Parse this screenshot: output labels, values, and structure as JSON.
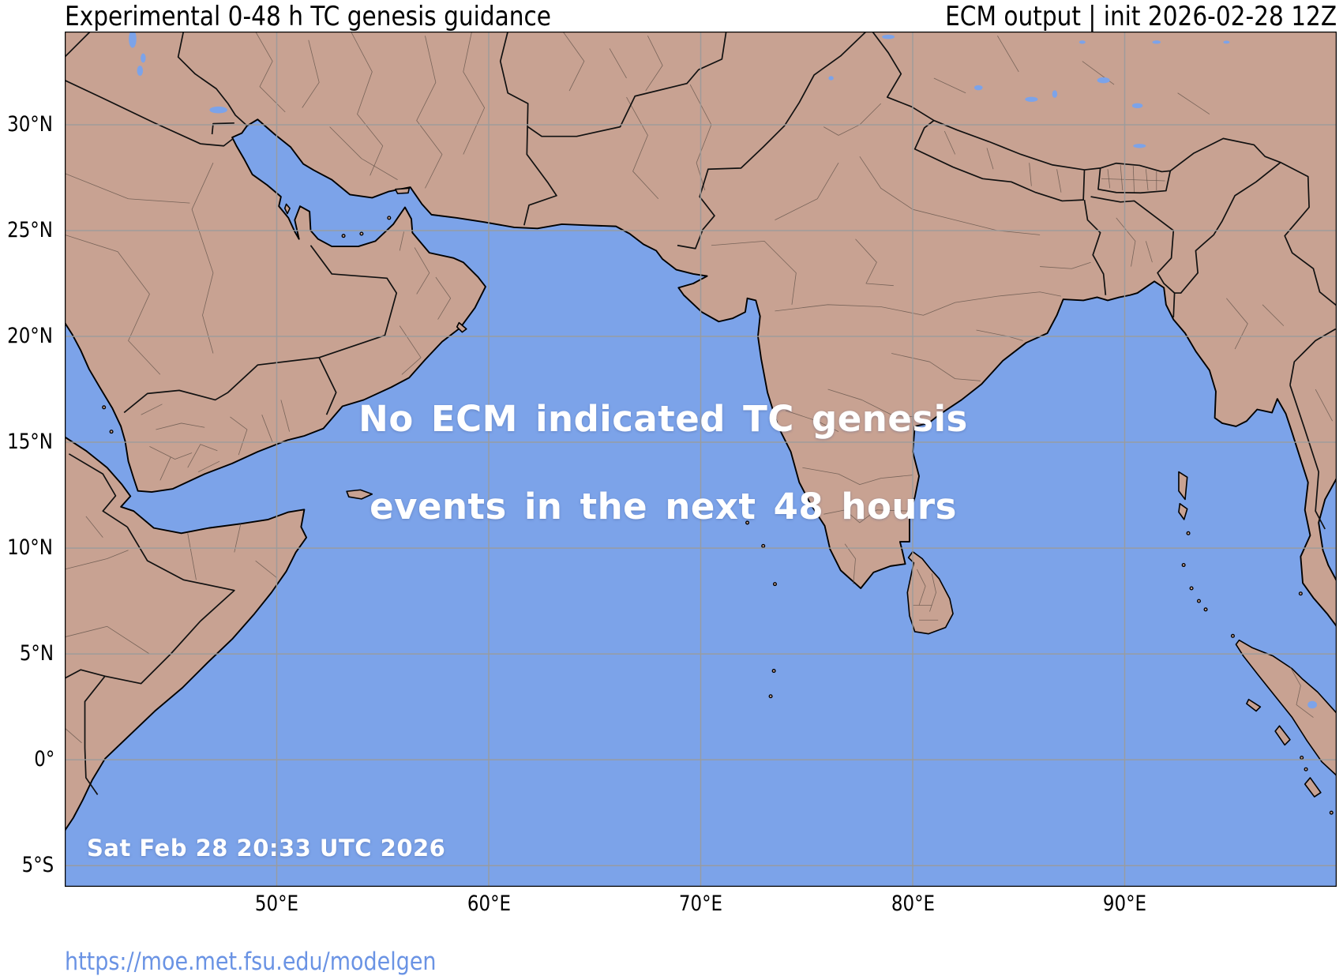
{
  "header": {
    "title_left": "Experimental 0-48 h TC genesis guidance",
    "title_right": "ECM output | init 2026-02-28 12Z"
  },
  "map": {
    "message_line1": "No ECM indicated TC genesis",
    "message_line2": "events in the next 48 hours",
    "timestamp": "Sat Feb 28 20:33 UTC 2026",
    "lat_ticks": [
      "30°N",
      "25°N",
      "20°N",
      "15°N",
      "10°N",
      "5°N",
      "0°",
      "5°S"
    ],
    "lon_ticks": [
      "50°E",
      "60°E",
      "70°E",
      "80°E",
      "90°E"
    ],
    "colors": {
      "ocean": "#7ca3e9",
      "land": "#c8a292",
      "grid": "#9b9b9b",
      "coastline": "#000000",
      "country_border": "#111111",
      "admin_border": "#5d4f46",
      "message_text": "#ffffff",
      "url_link": "#6a93e4"
    }
  },
  "footer": {
    "url": "https://moe.met.fsu.edu/modelgen"
  }
}
